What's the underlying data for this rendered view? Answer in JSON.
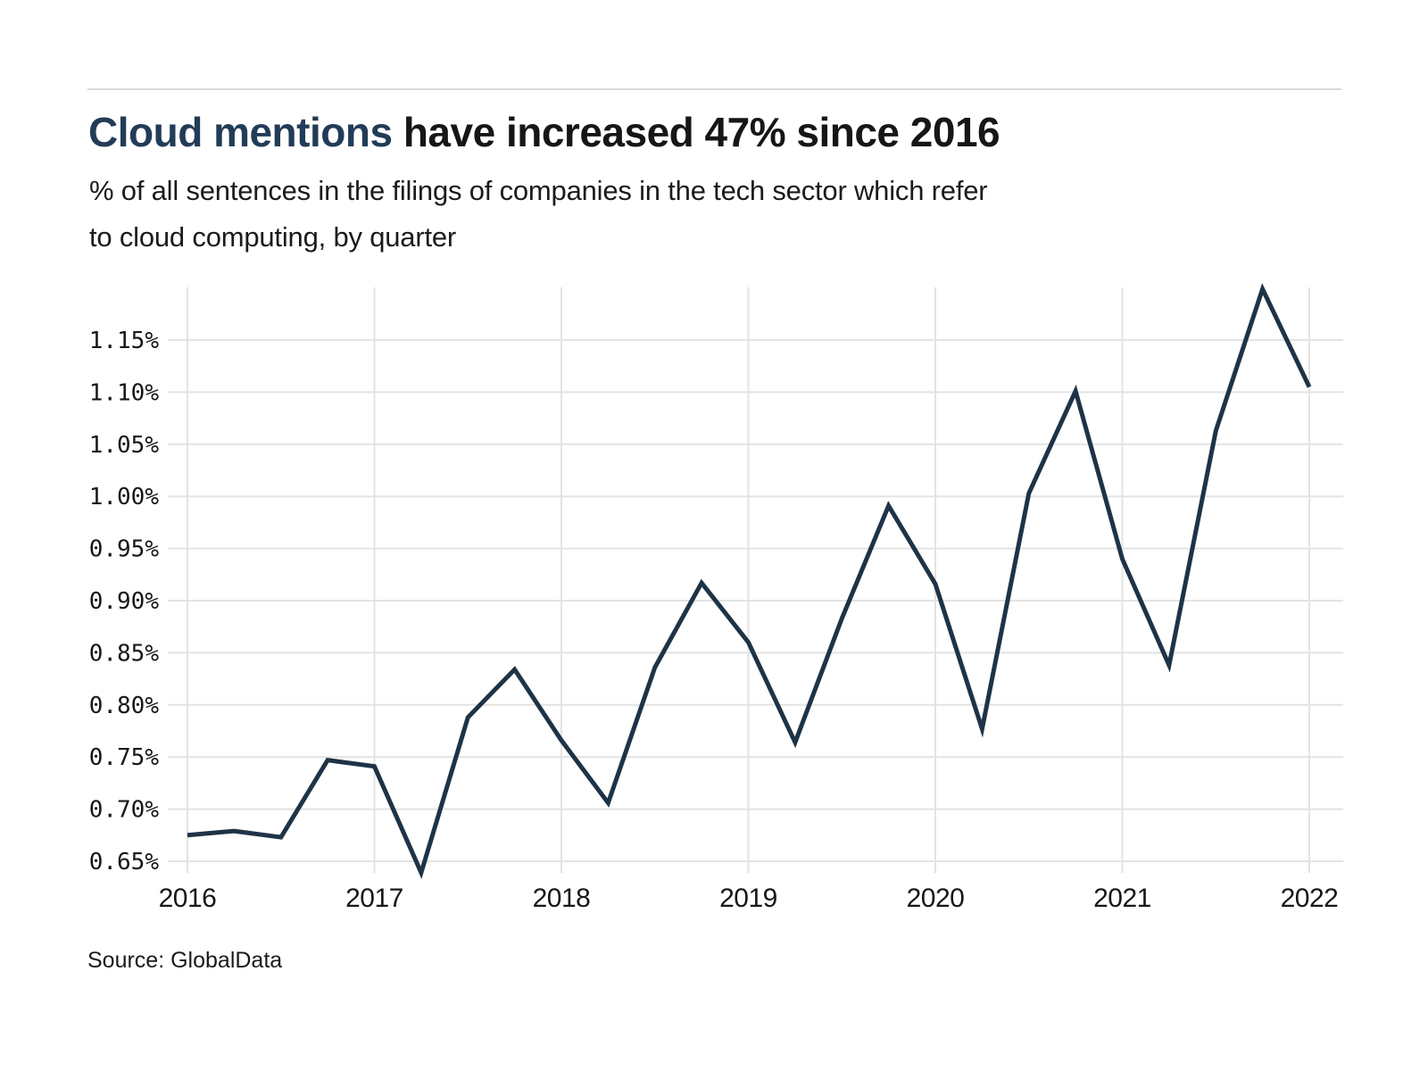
{
  "chart_data": {
    "type": "line",
    "title": "Cloud mentions have increased 47% since 2016",
    "title_accent": "Cloud mentions",
    "title_rest": " have increased 47% since 2016",
    "subtitle": "% of all sentences in the filings of companies in the tech sector which refer to cloud computing, by quarter",
    "subtitle_line1": "% of all sentences in the filings of companies in the tech sector which refer",
    "subtitle_line2": "to cloud computing, by quarter",
    "source": "Source: GlobalData",
    "xlabel": "",
    "ylabel": "",
    "categories": [
      "2016 Q1",
      "2016 Q2",
      "2016 Q3",
      "2016 Q4",
      "2017 Q1",
      "2017 Q2",
      "2017 Q3",
      "2017 Q4",
      "2018 Q1",
      "2018 Q2",
      "2018 Q3",
      "2018 Q4",
      "2019 Q1",
      "2019 Q2",
      "2019 Q3",
      "2019 Q4",
      "2020 Q1",
      "2020 Q2",
      "2020 Q3",
      "2020 Q4",
      "2021 Q1",
      "2021 Q2",
      "2021 Q3",
      "2021 Q4",
      "2022 Q1"
    ],
    "values": [
      0.675,
      0.679,
      0.673,
      0.747,
      0.741,
      0.639,
      0.788,
      0.834,
      0.766,
      0.706,
      0.836,
      0.917,
      0.86,
      0.764,
      0.883,
      0.991,
      0.916,
      0.777,
      1.003,
      1.101,
      0.94,
      0.838,
      1.063,
      1.199,
      1.105
    ],
    "unit": "%",
    "xticks": [
      "2016",
      "2017",
      "2018",
      "2019",
      "2020",
      "2021",
      "2022"
    ],
    "yticks": [
      {
        "value": 1.15,
        "label": "1.15%"
      },
      {
        "value": 1.1,
        "label": "1.10%"
      },
      {
        "value": 1.05,
        "label": "1.05%"
      },
      {
        "value": 1.0,
        "label": "1.00%"
      },
      {
        "value": 0.95,
        "label": "0.95%"
      },
      {
        "value": 0.9,
        "label": "0.90%"
      },
      {
        "value": 0.85,
        "label": "0.85%"
      },
      {
        "value": 0.8,
        "label": "0.80%"
      },
      {
        "value": 0.75,
        "label": "0.75%"
      },
      {
        "value": 0.7,
        "label": "0.70%"
      },
      {
        "value": 0.65,
        "label": "0.65%"
      }
    ],
    "ylim": [
      0.637,
      1.201
    ],
    "grid": true,
    "legend": "none",
    "colors": {
      "line": "#1e3346",
      "title_accent": "#223c57",
      "text": "#171717",
      "grid": "#e3e3e3",
      "rule": "#d9d9d9"
    }
  }
}
